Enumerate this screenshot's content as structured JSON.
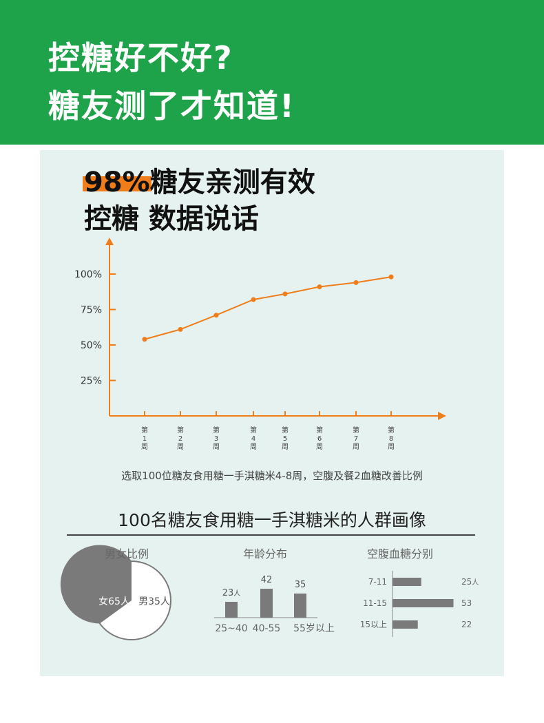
{
  "header": {
    "line1": "控糖好不好?",
    "line2": "糖友测了才知道!"
  },
  "title": {
    "line1": "98%糖友亲测有效",
    "line2": "控糖  数据说话"
  },
  "colors": {
    "header_green": "#1fa34a",
    "panel_bg": "#e6f2ef",
    "accent_orange": "#ee7d1a",
    "bar_gray": "#7a7a7a"
  },
  "chart_data": [
    {
      "type": "line",
      "x": [
        "第\n1\n周",
        "第\n2\n周",
        "第\n3\n周",
        "第\n4\n周",
        "第\n5\n周",
        "第\n6\n周",
        "第\n7\n周",
        "第\n8\n周"
      ],
      "values": [
        54,
        61,
        71,
        82,
        86,
        91,
        94,
        98
      ],
      "yticks": [
        "25%",
        "50%",
        "75%",
        "100%"
      ],
      "ytick_values": [
        25,
        50,
        75,
        100
      ],
      "ylim": [
        0,
        100
      ],
      "note": "选取100位糖友食用糖一手淇糖米4-8周，空腹及餐2血糖改善比例",
      "color": "#ee7d1a"
    },
    {
      "type": "pie",
      "title": "男女比例",
      "slices": [
        {
          "label": "女65人",
          "value": 65
        },
        {
          "label": "男35人",
          "value": 35
        }
      ]
    },
    {
      "type": "bar",
      "title": "年龄分布",
      "categories": [
        "25~40",
        "40-55",
        "55岁以上"
      ],
      "values": [
        23,
        42,
        35
      ],
      "value_labels": [
        "23",
        "42",
        "35"
      ],
      "unit_first": "人"
    },
    {
      "type": "bar",
      "orientation": "horizontal",
      "title": "空腹血糖分别",
      "categories": [
        "7-11",
        "11-15",
        "15以上"
      ],
      "values": [
        25,
        53,
        22
      ],
      "value_labels": [
        "25",
        "53",
        "22"
      ],
      "unit_first": "人"
    }
  ],
  "section": {
    "title": "100名糖友食用糖一手淇糖米的人群画像"
  }
}
